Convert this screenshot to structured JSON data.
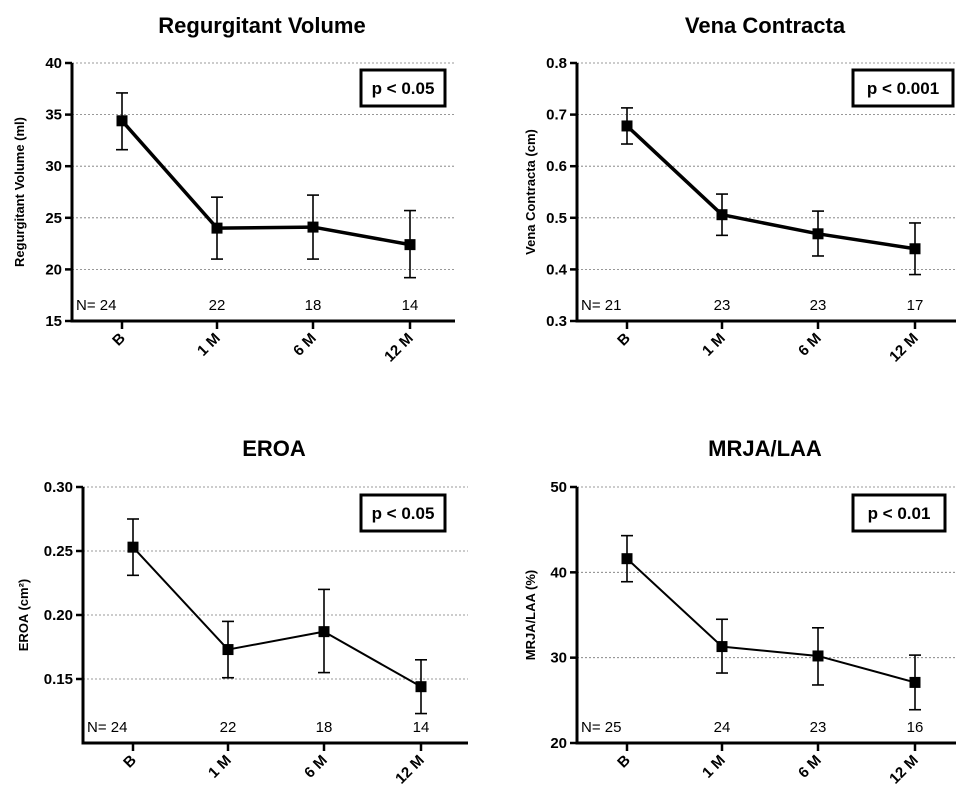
{
  "chart_data": [
    {
      "type": "line",
      "title": "Regurgitant Volume",
      "ylabel": "Regurgitant Volume (ml)",
      "categories": [
        "B",
        "1 M",
        "6 M",
        "12 M"
      ],
      "values": [
        34.4,
        24.0,
        24.1,
        22.4
      ],
      "error_low": [
        31.6,
        21.0,
        21.0,
        19.2
      ],
      "error_high": [
        37.1,
        27.0,
        27.2,
        25.7
      ],
      "n_prefix": "N=",
      "n_values": [
        "24",
        "22",
        "18",
        "14"
      ],
      "ylim": [
        15,
        40
      ],
      "yticks": [
        "15",
        "20",
        "25",
        "30",
        "35",
        "40"
      ],
      "p_value": "p < 0.05",
      "line_weight": "heavy",
      "grid": true
    },
    {
      "type": "line",
      "title": "Vena Contracta",
      "ylabel": "Vena Contracta (cm)",
      "categories": [
        "B",
        "1 M",
        "6 M",
        "12 M"
      ],
      "values": [
        0.678,
        0.506,
        0.469,
        0.44
      ],
      "error_low": [
        0.643,
        0.466,
        0.426,
        0.39
      ],
      "error_high": [
        0.713,
        0.546,
        0.513,
        0.49
      ],
      "n_prefix": "N=",
      "n_values": [
        "21",
        "23",
        "23",
        "17"
      ],
      "ylim": [
        0.3,
        0.8
      ],
      "yticks": [
        "0.3",
        "0.4",
        "0.5",
        "0.6",
        "0.7",
        "0.8"
      ],
      "p_value": "p < 0.001",
      "line_weight": "heavy",
      "grid": true
    },
    {
      "type": "line",
      "title": "EROA",
      "ylabel": "EROA (cm²)",
      "categories": [
        "B",
        "1 M",
        "6 M",
        "12 M"
      ],
      "values": [
        0.253,
        0.173,
        0.187,
        0.144
      ],
      "error_low": [
        0.231,
        0.151,
        0.155,
        0.123
      ],
      "error_high": [
        0.275,
        0.195,
        0.22,
        0.165
      ],
      "n_prefix": "N=",
      "n_values": [
        "24",
        "22",
        "18",
        "14"
      ],
      "ylim": [
        0.1,
        0.3
      ],
      "yticks": [
        "0.15",
        "0.20",
        "0.25",
        "0.30"
      ],
      "p_value": "p < 0.05",
      "line_weight": "light",
      "grid": true
    },
    {
      "type": "line",
      "title": "MRJA/LAA",
      "ylabel": "MRJA/LAA (%)",
      "categories": [
        "B",
        "1 M",
        "6 M",
        "12 M"
      ],
      "values": [
        41.6,
        31.3,
        30.2,
        27.1
      ],
      "error_low": [
        38.9,
        28.2,
        26.8,
        23.9
      ],
      "error_high": [
        44.3,
        34.5,
        33.5,
        30.3
      ],
      "n_prefix": "N=",
      "n_values": [
        "25",
        "24",
        "23",
        "16"
      ],
      "ylim": [
        20,
        50
      ],
      "yticks": [
        "20",
        "30",
        "40",
        "50"
      ],
      "p_value": "p < 0.01",
      "line_weight": "light",
      "grid": true
    }
  ],
  "colors": {
    "line": "#000000",
    "grid": "#777777",
    "background": "#ffffff"
  }
}
